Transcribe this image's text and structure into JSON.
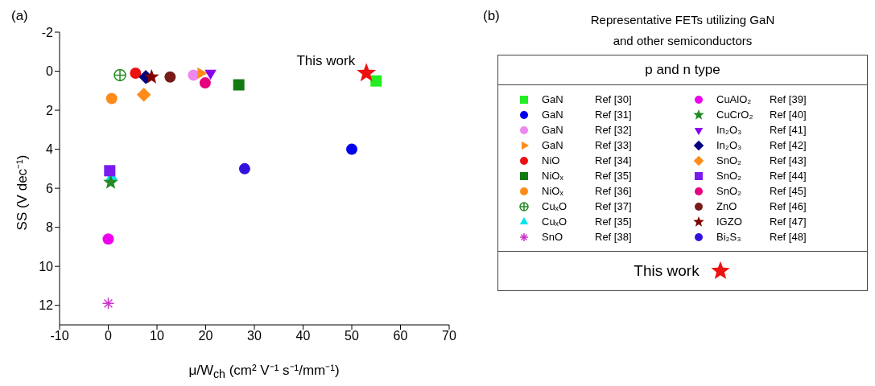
{
  "chart_data": {
    "type": "scatter",
    "xlabel": "μ/W$_{ch}$ (cm² V⁻¹ s⁻¹/mm⁻¹)",
    "ylabel": "SS (V dec⁻¹)",
    "xlim": [
      -10,
      70
    ],
    "xticks": [
      -10,
      0,
      10,
      20,
      30,
      40,
      50,
      60,
      70
    ],
    "ylim": [
      13,
      -2
    ],
    "yticks": [
      -2,
      0,
      2,
      4,
      6,
      8,
      10,
      12
    ],
    "grid": false,
    "legend": "right",
    "legend_title": "Representative FETs utilizing GaN and other semiconductors",
    "annotations": [
      "(a)",
      "(b)",
      "p and n type",
      {
        "text": "This work",
        "x": 53,
        "y": 0.1
      }
    ],
    "series": [
      {
        "name": "GaN\tRef [30]",
        "color": "#22ee22",
        "marker": "square",
        "x": [
          55
        ],
        "values": [
          0.5
        ]
      },
      {
        "name": "GaN\tRef [31]",
        "color": "#0000ee",
        "marker": "circle",
        "x": [
          50
        ],
        "values": [
          4
        ]
      },
      {
        "name": "GaN\tRef [32]",
        "color": "#ee88ee",
        "x": [
          17.5
        ],
        "values": [
          0.2
        ]
      },
      {
        "name": "GaN\tRef [33]",
        "color": "#ff8c1a",
        "marker": "triangle-right",
        "x": [
          19
        ],
        "values": [
          0.1
        ]
      },
      {
        "name": "NiO\tRef [34]",
        "color": "#ee1111",
        "marker": "circle",
        "x": [
          5.6
        ],
        "values": [
          0.1
        ]
      },
      {
        "name": "NiOₓ\tRef [35]",
        "color": "#137a13",
        "marker": "square",
        "x": [
          26.8
        ],
        "values": [
          0.7
        ]
      },
      {
        "name": "NiOₓ\tRef [36]",
        "color": "#ff8c1a",
        "marker": "circle",
        "x": [
          0.7
        ],
        "values": [
          1.4
        ]
      },
      {
        "name": "CuₓO\tRef [37]",
        "color": "#228b22",
        "marker": "plus-circle",
        "x": [
          2.4
        ],
        "values": [
          0.2
        ]
      },
      {
        "name": "CuₓO\tRef [35]",
        "color": "#00e5ee",
        "marker": "triangle",
        "x": [
          0.7
        ],
        "values": [
          5.4
        ]
      },
      {
        "name": "SnO\tRef [38]",
        "color": "#cc33cc",
        "marker": "cross",
        "x": [
          0
        ],
        "values": [
          11.9
        ]
      },
      {
        "name": "CuAlO₂\tRef [39]",
        "color": "#ee00ee",
        "marker": "circle",
        "x": [
          0
        ],
        "values": [
          8.6
        ]
      },
      {
        "name": "CuCrO₂\tRef [40]",
        "color": "#228b22",
        "marker": "star",
        "x": [
          0.5
        ],
        "values": [
          5.7
        ]
      },
      {
        "name": "In₂O₃\tRef [41]",
        "color": "#8800ee",
        "marker": "triangle-down",
        "x": [
          21
        ],
        "values": [
          0.1
        ]
      },
      {
        "name": "In₂O₃\tRef [42]",
        "color": "#000080",
        "marker": "diamond",
        "x": [
          7.7
        ],
        "values": [
          0.3
        ]
      },
      {
        "name": "SnO₂\tRef [43]",
        "color": "#ff8c1a",
        "marker": "diamond",
        "x": [
          7.3
        ],
        "values": [
          1.2
        ]
      },
      {
        "name": "SnO₂\tRef [44]",
        "color": "#7a1aee",
        "marker": "square",
        "x": [
          0.3
        ],
        "values": [
          5.1
        ]
      },
      {
        "name": "SnO₂\tRef [45]",
        "color": "#e6007e",
        "marker": "circle",
        "x": [
          19.9
        ],
        "values": [
          0.6
        ]
      },
      {
        "name": "ZnO\tRef [46]",
        "color": "#7a1a1a",
        "x": [
          12.7
        ],
        "values": [
          0.3
        ]
      },
      {
        "name": "IGZO\tRef [47]",
        "color": "#800000",
        "marker": "star",
        "x": [
          8.9
        ],
        "values": [
          0.3
        ]
      },
      {
        "name": "Bi₂S₃\tRef [48]",
        "color": "#3311dd",
        "marker": "circle",
        "x": [
          28
        ],
        "values": [
          5
        ]
      },
      {
        "name": "This work",
        "color": "#ee1111",
        "marker": "star",
        "x": [
          53
        ],
        "values": [
          0.1
        ]
      }
    ]
  }
}
